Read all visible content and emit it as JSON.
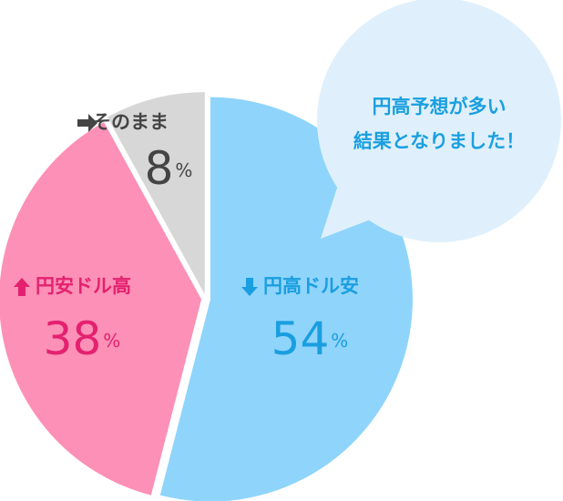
{
  "chart_data": {
    "type": "pie",
    "categories": [
      "円高ドル安",
      "円安ドル高",
      "そのまま"
    ],
    "values": [
      54,
      38,
      8
    ],
    "unit": "%",
    "colors": [
      "#8fd4fb",
      "#fd90b6",
      "#d7d7d7"
    ],
    "label_colors": [
      "#1a9ee0",
      "#e3216f",
      "#444444"
    ],
    "annotation": [
      "円高予想が多い",
      "結果となりました！"
    ]
  }
}
